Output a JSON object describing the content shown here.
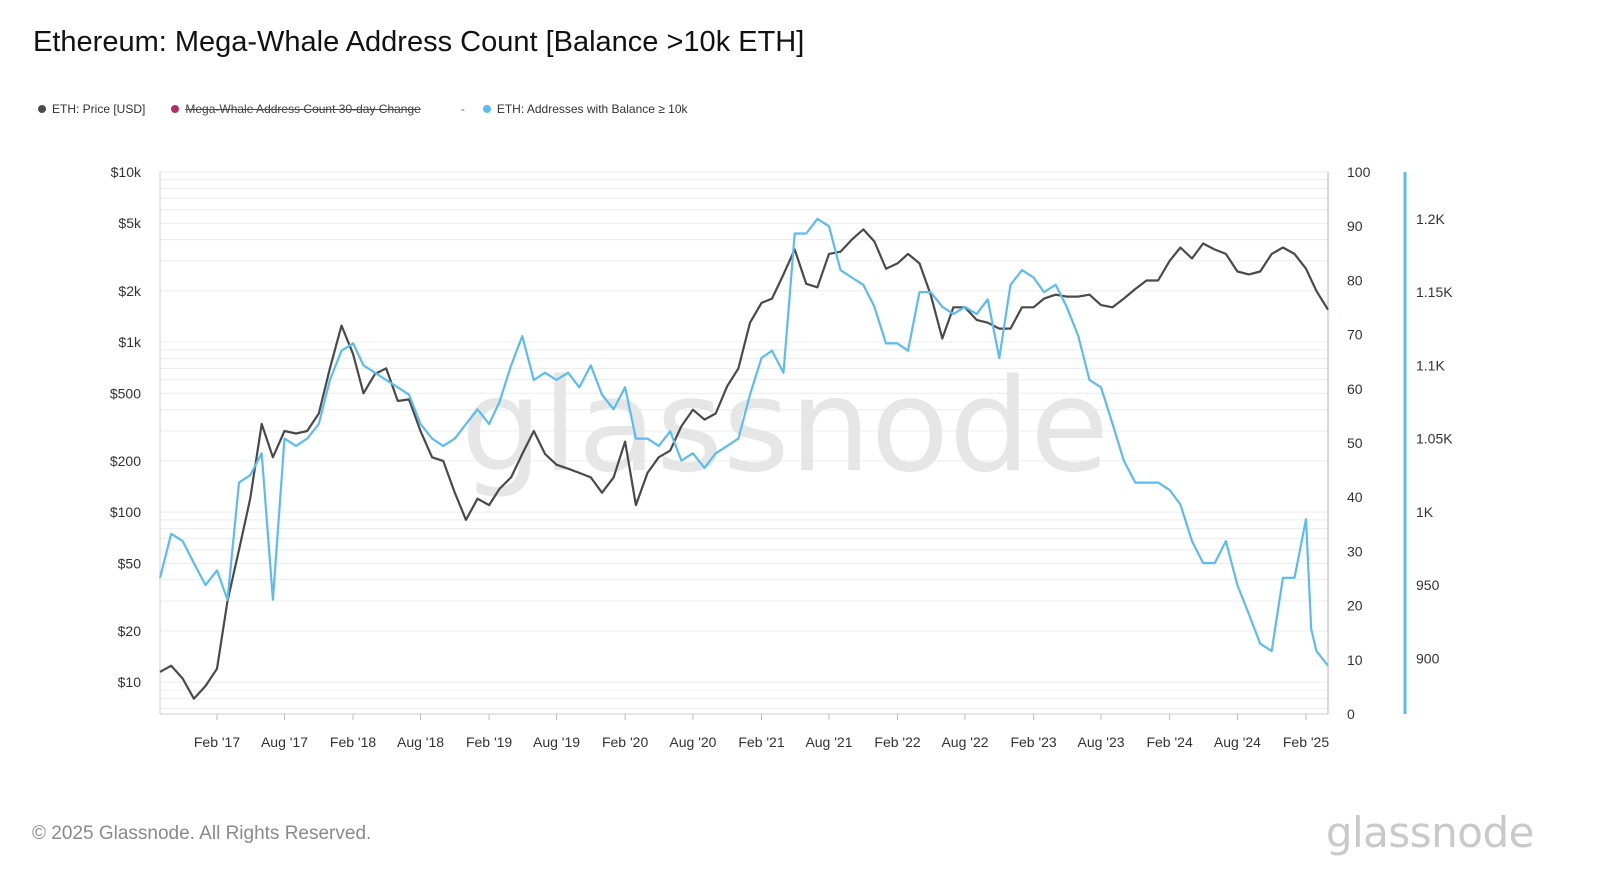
{
  "title": "Ethereum: Mega-Whale Address Count [Balance >10k ETH]",
  "legend": [
    {
      "label": "ETH: Price [USD]",
      "color": "#4a4a4a",
      "disabled": false
    },
    {
      "label": "Mega-Whale Address Count 30-day Change",
      "color": "#b0306a",
      "disabled": true
    },
    {
      "label": "ETH: Addresses with Balance ≥ 10k",
      "color": "#5bbcf0",
      "disabled": false
    }
  ],
  "legend_separator": "-",
  "footer": "© 2025 Glassnode. All Rights Reserved.",
  "logo": "glassnode",
  "watermark": "glassnode",
  "colors": {
    "price": "#4a4a4a",
    "addresses": "#5bbcf0",
    "change_axis": "#e8a0b8",
    "addr_axis": "#5bbcf0",
    "grid": "#ececec"
  },
  "chart_data": {
    "type": "line",
    "x_range": [
      "2016-09-01",
      "2025-04-01"
    ],
    "x_ticks": [
      {
        "date": "2017-02-01",
        "label": "Feb '17"
      },
      {
        "date": "2017-08-01",
        "label": "Aug '17"
      },
      {
        "date": "2018-02-01",
        "label": "Feb '18"
      },
      {
        "date": "2018-08-01",
        "label": "Aug '18"
      },
      {
        "date": "2019-02-01",
        "label": "Feb '19"
      },
      {
        "date": "2019-08-01",
        "label": "Aug '19"
      },
      {
        "date": "2020-02-01",
        "label": "Feb '20"
      },
      {
        "date": "2020-08-01",
        "label": "Aug '20"
      },
      {
        "date": "2021-02-01",
        "label": "Feb '21"
      },
      {
        "date": "2021-08-01",
        "label": "Aug '21"
      },
      {
        "date": "2022-02-01",
        "label": "Feb '22"
      },
      {
        "date": "2022-08-01",
        "label": "Aug '22"
      },
      {
        "date": "2023-02-01",
        "label": "Feb '23"
      },
      {
        "date": "2023-08-01",
        "label": "Aug '23"
      },
      {
        "date": "2024-02-01",
        "label": "Feb '24"
      },
      {
        "date": "2024-08-01",
        "label": "Aug '24"
      },
      {
        "date": "2025-02-01",
        "label": "Feb '25"
      }
    ],
    "y_left": {
      "scale": "log",
      "range": [
        6.5,
        10000
      ],
      "ticks": [
        {
          "value": 10000,
          "label": "$10k"
        },
        {
          "value": 5000,
          "label": "$5k"
        },
        {
          "value": 2000,
          "label": "$2k"
        },
        {
          "value": 1000,
          "label": "$1k"
        },
        {
          "value": 500,
          "label": "$500"
        },
        {
          "value": 200,
          "label": "$200"
        },
        {
          "value": 100,
          "label": "$100"
        },
        {
          "value": 50,
          "label": "$50"
        },
        {
          "value": 20,
          "label": "$20"
        },
        {
          "value": 10,
          "label": "$10"
        }
      ]
    },
    "y_right_1": {
      "scale": "linear",
      "range": [
        0,
        100
      ],
      "ticks": [
        {
          "value": 100,
          "label": "100"
        },
        {
          "value": 90,
          "label": "90"
        },
        {
          "value": 80,
          "label": "80"
        },
        {
          "value": 70,
          "label": "70"
        },
        {
          "value": 60,
          "label": "60"
        },
        {
          "value": 50,
          "label": "50"
        },
        {
          "value": 40,
          "label": "40"
        },
        {
          "value": 30,
          "label": "30"
        },
        {
          "value": 20,
          "label": "20"
        },
        {
          "value": 10,
          "label": "10"
        },
        {
          "value": 0,
          "label": "0"
        }
      ]
    },
    "y_right_2": {
      "scale": "linear",
      "range": [
        862,
        1232
      ],
      "ticks": [
        {
          "value": 1200,
          "label": "1.2K"
        },
        {
          "value": 1150,
          "label": "1.15K"
        },
        {
          "value": 1100,
          "label": "1.1K"
        },
        {
          "value": 1050,
          "label": "1.05K"
        },
        {
          "value": 1000,
          "label": "1K"
        },
        {
          "value": 950,
          "label": "950"
        },
        {
          "value": 900,
          "label": "900"
        }
      ]
    },
    "series": [
      {
        "name": "ETH: Price [USD]",
        "axis": "left",
        "color": "#4a4a4a",
        "points": [
          [
            "2016-09-01",
            11.5
          ],
          [
            "2016-10-01",
            12.5
          ],
          [
            "2016-11-01",
            10.5
          ],
          [
            "2016-12-01",
            8
          ],
          [
            "2017-01-01",
            9.5
          ],
          [
            "2017-02-01",
            12
          ],
          [
            "2017-03-01",
            30
          ],
          [
            "2017-04-01",
            60
          ],
          [
            "2017-05-01",
            120
          ],
          [
            "2017-06-01",
            330
          ],
          [
            "2017-07-01",
            210
          ],
          [
            "2017-08-01",
            300
          ],
          [
            "2017-09-01",
            290
          ],
          [
            "2017-10-01",
            300
          ],
          [
            "2017-11-01",
            380
          ],
          [
            "2017-12-01",
            700
          ],
          [
            "2018-01-01",
            1250
          ],
          [
            "2018-02-01",
            850
          ],
          [
            "2018-03-01",
            500
          ],
          [
            "2018-04-01",
            650
          ],
          [
            "2018-05-01",
            700
          ],
          [
            "2018-06-01",
            450
          ],
          [
            "2018-07-01",
            460
          ],
          [
            "2018-08-01",
            300
          ],
          [
            "2018-09-01",
            210
          ],
          [
            "2018-10-01",
            200
          ],
          [
            "2018-11-01",
            130
          ],
          [
            "2018-12-01",
            90
          ],
          [
            "2019-01-01",
            120
          ],
          [
            "2019-02-01",
            110
          ],
          [
            "2019-03-01",
            137
          ],
          [
            "2019-04-01",
            160
          ],
          [
            "2019-05-01",
            220
          ],
          [
            "2019-06-01",
            300
          ],
          [
            "2019-07-01",
            220
          ],
          [
            "2019-08-01",
            190
          ],
          [
            "2019-09-01",
            180
          ],
          [
            "2019-10-01",
            170
          ],
          [
            "2019-11-01",
            160
          ],
          [
            "2019-12-01",
            130
          ],
          [
            "2020-01-01",
            160
          ],
          [
            "2020-02-01",
            260
          ],
          [
            "2020-03-01",
            110
          ],
          [
            "2020-04-01",
            170
          ],
          [
            "2020-05-01",
            210
          ],
          [
            "2020-06-01",
            230
          ],
          [
            "2020-07-01",
            320
          ],
          [
            "2020-08-01",
            400
          ],
          [
            "2020-09-01",
            350
          ],
          [
            "2020-10-01",
            380
          ],
          [
            "2020-11-01",
            550
          ],
          [
            "2020-12-01",
            700
          ],
          [
            "2021-01-01",
            1300
          ],
          [
            "2021-02-01",
            1700
          ],
          [
            "2021-03-01",
            1800
          ],
          [
            "2021-04-01",
            2500
          ],
          [
            "2021-05-01",
            3500
          ],
          [
            "2021-06-01",
            2200
          ],
          [
            "2021-07-01",
            2100
          ],
          [
            "2021-08-01",
            3300
          ],
          [
            "2021-09-01",
            3400
          ],
          [
            "2021-10-01",
            4000
          ],
          [
            "2021-11-01",
            4600
          ],
          [
            "2021-12-01",
            3900
          ],
          [
            "2022-01-01",
            2700
          ],
          [
            "2022-02-01",
            2900
          ],
          [
            "2022-03-01",
            3300
          ],
          [
            "2022-04-01",
            2900
          ],
          [
            "2022-05-01",
            1900
          ],
          [
            "2022-06-01",
            1050
          ],
          [
            "2022-07-01",
            1600
          ],
          [
            "2022-08-01",
            1600
          ],
          [
            "2022-09-01",
            1350
          ],
          [
            "2022-10-01",
            1300
          ],
          [
            "2022-11-01",
            1200
          ],
          [
            "2022-12-01",
            1200
          ],
          [
            "2023-01-01",
            1600
          ],
          [
            "2023-02-01",
            1600
          ],
          [
            "2023-03-01",
            1800
          ],
          [
            "2023-04-01",
            1900
          ],
          [
            "2023-05-01",
            1850
          ],
          [
            "2023-06-01",
            1850
          ],
          [
            "2023-07-01",
            1900
          ],
          [
            "2023-08-01",
            1650
          ],
          [
            "2023-09-01",
            1600
          ],
          [
            "2023-10-01",
            1800
          ],
          [
            "2023-11-01",
            2050
          ],
          [
            "2023-12-01",
            2300
          ],
          [
            "2024-01-01",
            2300
          ],
          [
            "2024-02-01",
            3000
          ],
          [
            "2024-03-01",
            3600
          ],
          [
            "2024-04-01",
            3100
          ],
          [
            "2024-05-01",
            3800
          ],
          [
            "2024-06-01",
            3500
          ],
          [
            "2024-07-01",
            3300
          ],
          [
            "2024-08-01",
            2600
          ],
          [
            "2024-09-01",
            2500
          ],
          [
            "2024-10-01",
            2600
          ],
          [
            "2024-11-01",
            3300
          ],
          [
            "2024-12-01",
            3600
          ],
          [
            "2025-01-01",
            3300
          ],
          [
            "2025-02-01",
            2700
          ],
          [
            "2025-03-01",
            2000
          ],
          [
            "2025-04-01",
            1550
          ]
        ]
      },
      {
        "name": "ETH: Addresses with Balance ≥ 10k",
        "axis": "right_2",
        "color": "#5bbcf0",
        "points": [
          [
            "2016-09-01",
            955
          ],
          [
            "2016-10-01",
            985
          ],
          [
            "2016-11-01",
            980
          ],
          [
            "2016-12-01",
            965
          ],
          [
            "2017-01-01",
            950
          ],
          [
            "2017-02-01",
            960
          ],
          [
            "2017-03-01",
            940
          ],
          [
            "2017-04-01",
            1020
          ],
          [
            "2017-05-01",
            1025
          ],
          [
            "2017-06-01",
            1040
          ],
          [
            "2017-07-01",
            940
          ],
          [
            "2017-08-01",
            1050
          ],
          [
            "2017-09-01",
            1045
          ],
          [
            "2017-10-01",
            1050
          ],
          [
            "2017-11-01",
            1060
          ],
          [
            "2017-12-01",
            1090
          ],
          [
            "2018-01-01",
            1110
          ],
          [
            "2018-02-01",
            1115
          ],
          [
            "2018-03-01",
            1100
          ],
          [
            "2018-04-01",
            1095
          ],
          [
            "2018-05-01",
            1090
          ],
          [
            "2018-06-01",
            1085
          ],
          [
            "2018-07-01",
            1080
          ],
          [
            "2018-08-01",
            1060
          ],
          [
            "2018-09-01",
            1050
          ],
          [
            "2018-10-01",
            1045
          ],
          [
            "2018-11-01",
            1050
          ],
          [
            "2018-12-01",
            1060
          ],
          [
            "2019-01-01",
            1070
          ],
          [
            "2019-02-01",
            1060
          ],
          [
            "2019-03-01",
            1075
          ],
          [
            "2019-04-01",
            1100
          ],
          [
            "2019-05-01",
            1120
          ],
          [
            "2019-06-01",
            1090
          ],
          [
            "2019-07-01",
            1095
          ],
          [
            "2019-08-01",
            1090
          ],
          [
            "2019-09-01",
            1095
          ],
          [
            "2019-10-01",
            1085
          ],
          [
            "2019-11-01",
            1100
          ],
          [
            "2019-12-01",
            1080
          ],
          [
            "2020-01-01",
            1070
          ],
          [
            "2020-02-01",
            1085
          ],
          [
            "2020-03-01",
            1050
          ],
          [
            "2020-04-01",
            1050
          ],
          [
            "2020-05-01",
            1045
          ],
          [
            "2020-06-01",
            1055
          ],
          [
            "2020-07-01",
            1035
          ],
          [
            "2020-08-01",
            1040
          ],
          [
            "2020-09-01",
            1030
          ],
          [
            "2020-10-01",
            1040
          ],
          [
            "2020-11-01",
            1045
          ],
          [
            "2020-12-01",
            1050
          ],
          [
            "2021-01-01",
            1080
          ],
          [
            "2021-02-01",
            1105
          ],
          [
            "2021-03-01",
            1110
          ],
          [
            "2021-04-01",
            1095
          ],
          [
            "2021-05-01",
            1190
          ],
          [
            "2021-06-01",
            1190
          ],
          [
            "2021-07-01",
            1200
          ],
          [
            "2021-08-01",
            1195
          ],
          [
            "2021-09-01",
            1165
          ],
          [
            "2021-10-01",
            1160
          ],
          [
            "2021-11-01",
            1155
          ],
          [
            "2021-12-01",
            1140
          ],
          [
            "2022-01-01",
            1115
          ],
          [
            "2022-02-01",
            1115
          ],
          [
            "2022-03-01",
            1110
          ],
          [
            "2022-04-01",
            1150
          ],
          [
            "2022-05-01",
            1150
          ],
          [
            "2022-06-01",
            1140
          ],
          [
            "2022-07-01",
            1135
          ],
          [
            "2022-08-01",
            1140
          ],
          [
            "2022-09-01",
            1135
          ],
          [
            "2022-10-01",
            1145
          ],
          [
            "2022-11-01",
            1105
          ],
          [
            "2022-12-01",
            1155
          ],
          [
            "2023-01-01",
            1165
          ],
          [
            "2023-02-01",
            1160
          ],
          [
            "2023-03-01",
            1150
          ],
          [
            "2023-04-01",
            1155
          ],
          [
            "2023-05-01",
            1140
          ],
          [
            "2023-06-01",
            1120
          ],
          [
            "2023-07-01",
            1090
          ],
          [
            "2023-08-01",
            1085
          ],
          [
            "2023-09-01",
            1060
          ],
          [
            "2023-10-01",
            1035
          ],
          [
            "2023-11-01",
            1020
          ],
          [
            "2023-12-01",
            1020
          ],
          [
            "2024-01-01",
            1020
          ],
          [
            "2024-02-01",
            1015
          ],
          [
            "2024-03-01",
            1005
          ],
          [
            "2024-04-01",
            980
          ],
          [
            "2024-05-01",
            965
          ],
          [
            "2024-06-01",
            965
          ],
          [
            "2024-07-01",
            980
          ],
          [
            "2024-08-01",
            950
          ],
          [
            "2024-09-01",
            930
          ],
          [
            "2024-10-01",
            910
          ],
          [
            "2024-11-01",
            905
          ],
          [
            "2024-12-01",
            955
          ],
          [
            "2025-01-01",
            955
          ],
          [
            "2025-02-01",
            995
          ],
          [
            "2025-02-15",
            920
          ],
          [
            "2025-03-01",
            905
          ],
          [
            "2025-04-01",
            895
          ]
        ]
      }
    ],
    "grid": true,
    "legend_position": "top-left"
  }
}
